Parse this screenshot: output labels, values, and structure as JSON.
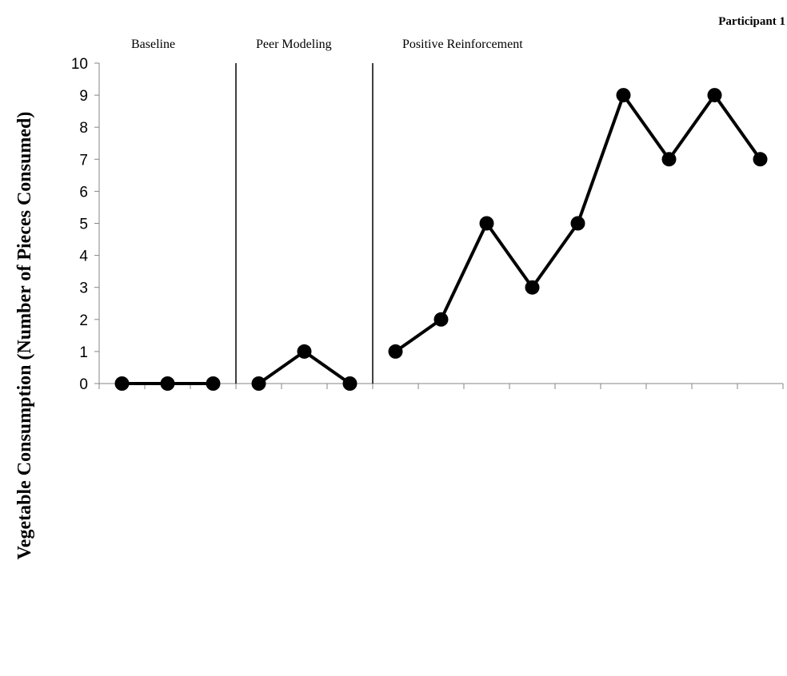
{
  "chart_data": {
    "type": "line",
    "participant_label": "Participant 1",
    "ylabel": "Vegetable Consumption (Number of Pieces Consumed)",
    "xlabel": "",
    "ylim": [
      0,
      10
    ],
    "yticks": [
      "0",
      "1",
      "2",
      "3",
      "4",
      "5",
      "6",
      "7",
      "8",
      "9",
      "10"
    ],
    "grid": false,
    "phases": [
      {
        "label": "Baseline",
        "sessions": [
          1,
          2,
          3
        ],
        "values": [
          0,
          0,
          0
        ]
      },
      {
        "label": "Peer Modeling",
        "sessions": [
          4,
          5,
          6
        ],
        "values": [
          0,
          1,
          0
        ]
      },
      {
        "label": "Positive Reinforcement",
        "sessions": [
          7,
          8,
          9,
          10,
          11,
          12,
          13,
          14,
          15
        ],
        "values": [
          1,
          2,
          5,
          3,
          5,
          9,
          7,
          9,
          7
        ]
      }
    ],
    "phase_change_after_sessions": [
      3,
      6
    ],
    "total_sessions": 15
  }
}
